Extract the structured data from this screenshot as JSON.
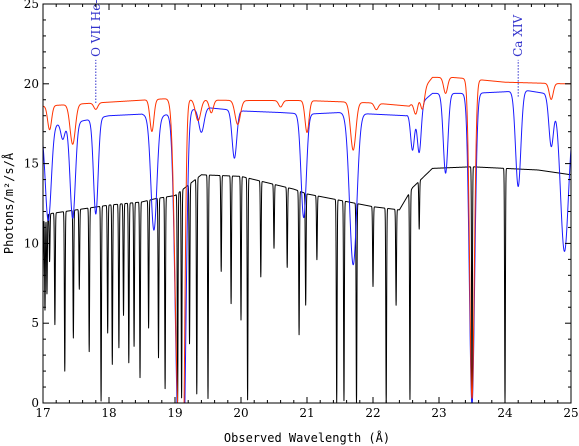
{
  "chart_data": {
    "type": "line",
    "xlabel": "Observed Wavelength (Å)",
    "ylabel": "Photons/m²/s/Å",
    "xlim": [
      17,
      25
    ],
    "ylim": [
      0,
      25
    ],
    "x_ticks": [
      "17",
      "18",
      "19",
      "20",
      "21",
      "22",
      "23",
      "24",
      "25"
    ],
    "y_ticks": [
      "0",
      "5",
      "10",
      "15",
      "20",
      "25"
    ],
    "grid": false,
    "colors": {
      "red": "#ff3300",
      "blue": "#1a1aff",
      "black": "#000000",
      "annotation": "#3333cc"
    },
    "annotations": [
      {
        "text": "O VII He-γ",
        "x": 17.8,
        "y_from": 18.8,
        "y_to": 21.5
      },
      {
        "text": "Ca XIV",
        "x": 24.2,
        "y_from": 19.2,
        "y_to": 21.5
      }
    ],
    "series": [
      {
        "color": "red",
        "continuum": [
          [
            17.0,
            18.6
          ],
          [
            18.6,
            19.0
          ],
          [
            19.0,
            19.1
          ],
          [
            19.3,
            19.0
          ],
          [
            20.0,
            18.95
          ],
          [
            21.0,
            18.95
          ],
          [
            22.0,
            18.8
          ],
          [
            22.55,
            18.6
          ],
          [
            22.9,
            20.4
          ],
          [
            23.2,
            20.4
          ],
          [
            23.5,
            20.3
          ],
          [
            24.0,
            20.1
          ],
          [
            24.9,
            20.0
          ],
          [
            25.0,
            20.0
          ]
        ],
        "lines": [
          [
            17.1,
            1.5,
            0.03
          ],
          [
            17.45,
            2.5,
            0.04
          ],
          [
            17.8,
            0.4,
            0.03
          ],
          [
            18.65,
            2.0,
            0.03
          ],
          [
            19.05,
            19.0,
            0.05
          ],
          [
            19.12,
            18.0,
            0.03
          ],
          [
            19.35,
            1.3,
            0.04
          ],
          [
            19.55,
            0.8,
            0.03
          ],
          [
            19.95,
            1.5,
            0.04
          ],
          [
            20.6,
            0.4,
            0.03
          ],
          [
            21.0,
            2.0,
            0.03
          ],
          [
            21.7,
            3.0,
            0.04
          ],
          [
            22.05,
            0.4,
            0.03
          ],
          [
            22.65,
            1.0,
            0.03
          ],
          [
            22.75,
            1.2,
            0.03
          ],
          [
            23.1,
            1.0,
            0.03
          ],
          [
            23.5,
            20.0,
            0.035
          ],
          [
            24.7,
            1.0,
            0.03
          ]
        ]
      },
      {
        "color": "blue",
        "continuum": [
          [
            17.0,
            17.4
          ],
          [
            17.5,
            17.6
          ],
          [
            18.0,
            18.0
          ],
          [
            18.5,
            18.1
          ],
          [
            18.7,
            17.8
          ],
          [
            19.0,
            18.3
          ],
          [
            19.5,
            18.5
          ],
          [
            20.0,
            18.3
          ],
          [
            20.6,
            18.2
          ],
          [
            21.0,
            18.1
          ],
          [
            21.5,
            18.2
          ],
          [
            22.0,
            18.1
          ],
          [
            22.5,
            18.0
          ],
          [
            22.9,
            19.4
          ],
          [
            23.5,
            19.4
          ],
          [
            24.0,
            19.5
          ],
          [
            24.3,
            19.6
          ],
          [
            24.6,
            19.4
          ],
          [
            24.8,
            18.8
          ],
          [
            25.0,
            18.2
          ]
        ],
        "lines": [
          [
            17.08,
            6.0,
            0.045
          ],
          [
            17.3,
            1.0,
            0.03
          ],
          [
            17.45,
            6.0,
            0.04
          ],
          [
            17.8,
            6.0,
            0.035
          ],
          [
            18.68,
            7.0,
            0.045
          ],
          [
            19.05,
            19.0,
            0.05
          ],
          [
            19.13,
            18.0,
            0.04
          ],
          [
            19.4,
            1.5,
            0.04
          ],
          [
            19.9,
            3.0,
            0.035
          ],
          [
            20.95,
            6.5,
            0.04
          ],
          [
            21.7,
            9.5,
            0.055
          ],
          [
            22.6,
            2.5,
            0.03
          ],
          [
            22.7,
            3.0,
            0.03
          ],
          [
            23.1,
            5.0,
            0.035
          ],
          [
            23.5,
            19.5,
            0.04
          ],
          [
            24.2,
            6.0,
            0.04
          ],
          [
            24.7,
            3.0,
            0.035
          ],
          [
            24.9,
            9.0,
            0.06
          ]
        ]
      },
      {
        "color": "black",
        "continuum": [
          [
            17.0,
            11.8
          ],
          [
            17.5,
            12.1
          ],
          [
            18.0,
            12.4
          ],
          [
            18.5,
            12.6
          ],
          [
            18.7,
            12.8
          ],
          [
            19.0,
            13.0
          ],
          [
            19.4,
            14.3
          ],
          [
            20.0,
            14.2
          ],
          [
            20.8,
            13.4
          ],
          [
            21.0,
            13.1
          ],
          [
            21.5,
            12.7
          ],
          [
            22.0,
            12.3
          ],
          [
            22.4,
            12.1
          ],
          [
            22.6,
            13.5
          ],
          [
            22.9,
            14.7
          ],
          [
            23.5,
            14.8
          ],
          [
            24.5,
            14.6
          ],
          [
            25.0,
            14.3
          ]
        ],
        "lines": [
          [
            17.0,
            4.0,
            0.006
          ],
          [
            17.03,
            6.0,
            0.006
          ],
          [
            17.06,
            5.0,
            0.006
          ],
          [
            17.1,
            3.0,
            0.006
          ],
          [
            17.18,
            7.0,
            0.006
          ],
          [
            17.33,
            10.0,
            0.006
          ],
          [
            17.46,
            8.0,
            0.006
          ],
          [
            17.55,
            5.0,
            0.006
          ],
          [
            17.7,
            9.0,
            0.006
          ],
          [
            17.88,
            12.2,
            0.006
          ],
          [
            17.98,
            8.0,
            0.006
          ],
          [
            18.05,
            10.0,
            0.006
          ],
          [
            18.15,
            9.0,
            0.006
          ],
          [
            18.22,
            7.0,
            0.006
          ],
          [
            18.3,
            10.0,
            0.006
          ],
          [
            18.38,
            9.0,
            0.006
          ],
          [
            18.47,
            11.0,
            0.006
          ],
          [
            18.6,
            8.0,
            0.006
          ],
          [
            18.75,
            10.0,
            0.006
          ],
          [
            18.85,
            12.0,
            0.006
          ],
          [
            19.04,
            13.0,
            0.006
          ],
          [
            19.1,
            13.0,
            0.006
          ],
          [
            19.22,
            10.0,
            0.006
          ],
          [
            19.33,
            13.5,
            0.006
          ],
          [
            19.5,
            14.0,
            0.006
          ],
          [
            19.7,
            6.0,
            0.006
          ],
          [
            19.85,
            8.0,
            0.006
          ],
          [
            20.0,
            9.0,
            0.006
          ],
          [
            20.1,
            13.9,
            0.006
          ],
          [
            20.3,
            6.0,
            0.006
          ],
          [
            20.5,
            4.0,
            0.006
          ],
          [
            20.7,
            5.0,
            0.006
          ],
          [
            20.88,
            9.0,
            0.006
          ],
          [
            20.98,
            7.0,
            0.006
          ],
          [
            21.15,
            4.0,
            0.006
          ],
          [
            21.45,
            12.7,
            0.006
          ],
          [
            21.56,
            12.5,
            0.006
          ],
          [
            21.75,
            12.7,
            0.006
          ],
          [
            22.0,
            5.0,
            0.006
          ],
          [
            22.2,
            12.3,
            0.006
          ],
          [
            22.35,
            6.0,
            0.006
          ],
          [
            22.56,
            13.0,
            0.006
          ],
          [
            22.7,
            3.0,
            0.006
          ],
          [
            23.5,
            14.8,
            0.006
          ],
          [
            24.0,
            14.7,
            0.006
          ]
        ]
      }
    ]
  }
}
